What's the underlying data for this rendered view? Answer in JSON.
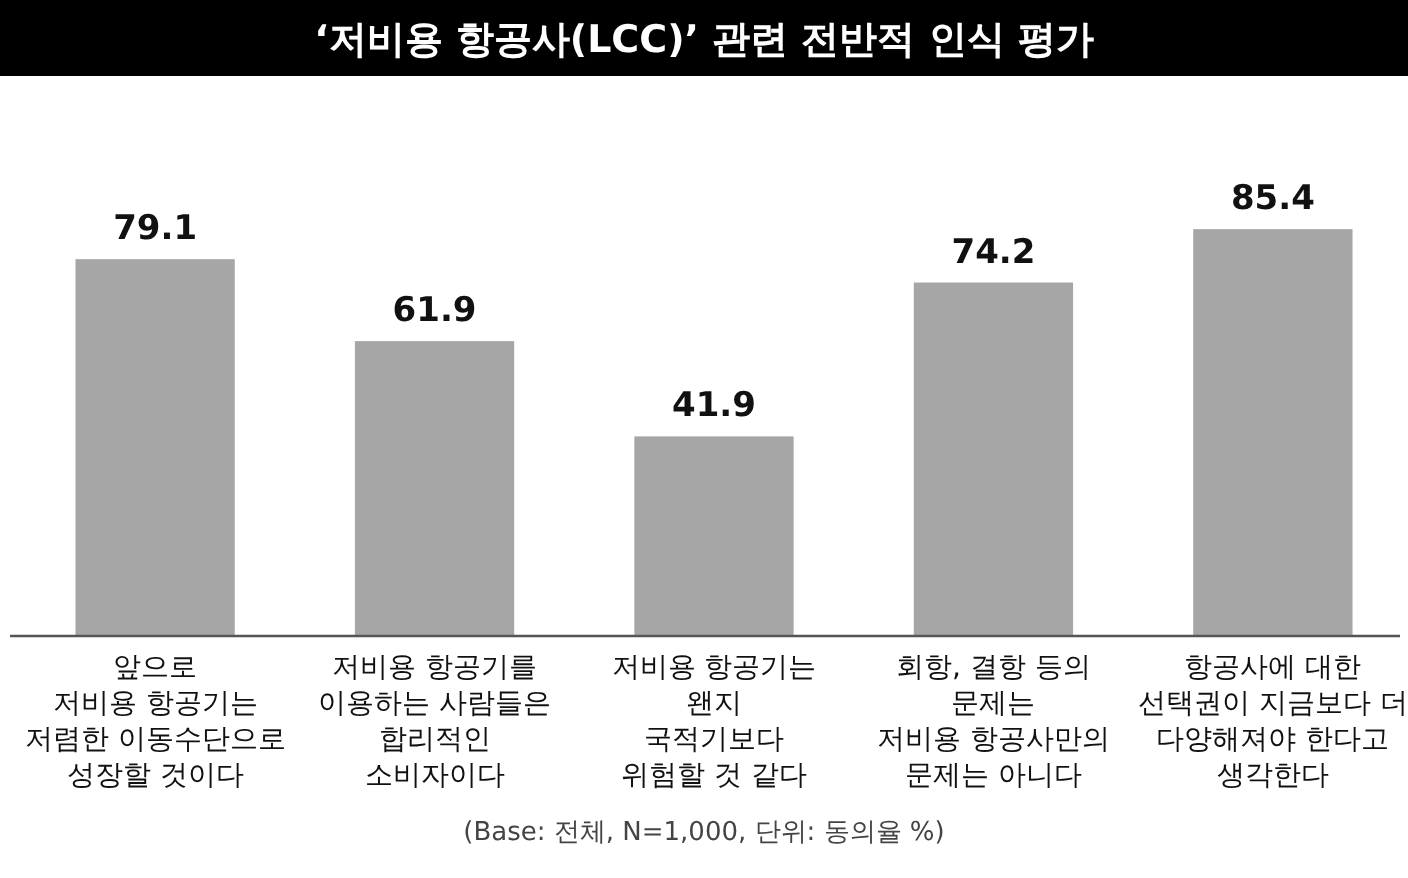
{
  "chart_data": {
    "type": "bar",
    "title": "‘저비용 항공사(LCC)’ 관련 전반적 인식 평가",
    "categories": [
      "앞으로\n저비용 항공기는\n저렴한 이동수단으로\n성장할 것이다",
      "저비용 항공기를\n이용하는 사람들은\n합리적인\n소비자이다",
      "저비용 항공기는\n왠지\n국적기보다\n위험할 것 같다",
      "회항, 결항 등의\n문제는\n저비용 항공사만의\n문제는 아니다",
      "항공사에 대한\n선택권이 지금보다 더\n다양해져야 한다고\n생각한다"
    ],
    "values": [
      79.1,
      61.9,
      41.9,
      74.2,
      85.4
    ],
    "color": "#a6a6a6",
    "data_labels": true,
    "annotations": [
      "(Base: 전체, N=1,000, 단위: 동의율 %)"
    ]
  }
}
